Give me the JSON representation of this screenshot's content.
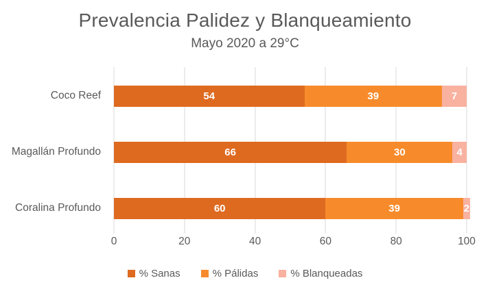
{
  "chart": {
    "title": "Prevalencia Palidez y Blanqueamiento",
    "subtitle": "Mayo 2020 a 29°C"
  },
  "chart_data": {
    "type": "bar",
    "orientation": "horizontal",
    "stacked": true,
    "title": "Prevalencia Palidez y Blanqueamiento",
    "subtitle": "Mayo 2020 a 29°C",
    "categories": [
      "Coco Reef",
      "Magallán Profundo",
      "Coralina Profundo"
    ],
    "series": [
      {
        "name": "% Sanas",
        "color": "#DE6A20",
        "values": [
          54,
          66,
          60
        ]
      },
      {
        "name": "% Pálidas",
        "color": "#F78B2B",
        "values": [
          39,
          30,
          39
        ]
      },
      {
        "name": "% Blanqueadas",
        "color": "#F9B1A0",
        "values": [
          7,
          4,
          2
        ]
      }
    ],
    "xlabel": "",
    "ylabel": "",
    "xlim": [
      0,
      100
    ],
    "x_ticks": [
      0,
      20,
      40,
      60,
      80,
      100
    ],
    "grid": "vertical",
    "legend_position": "bottom",
    "value_labels": "inside-white"
  },
  "colors": {
    "background": "#FFFFFF",
    "title_text": "#595959",
    "axis_text": "#595959",
    "gridline": "#D9D9D9",
    "value_label_text": "#FFFFFF"
  }
}
